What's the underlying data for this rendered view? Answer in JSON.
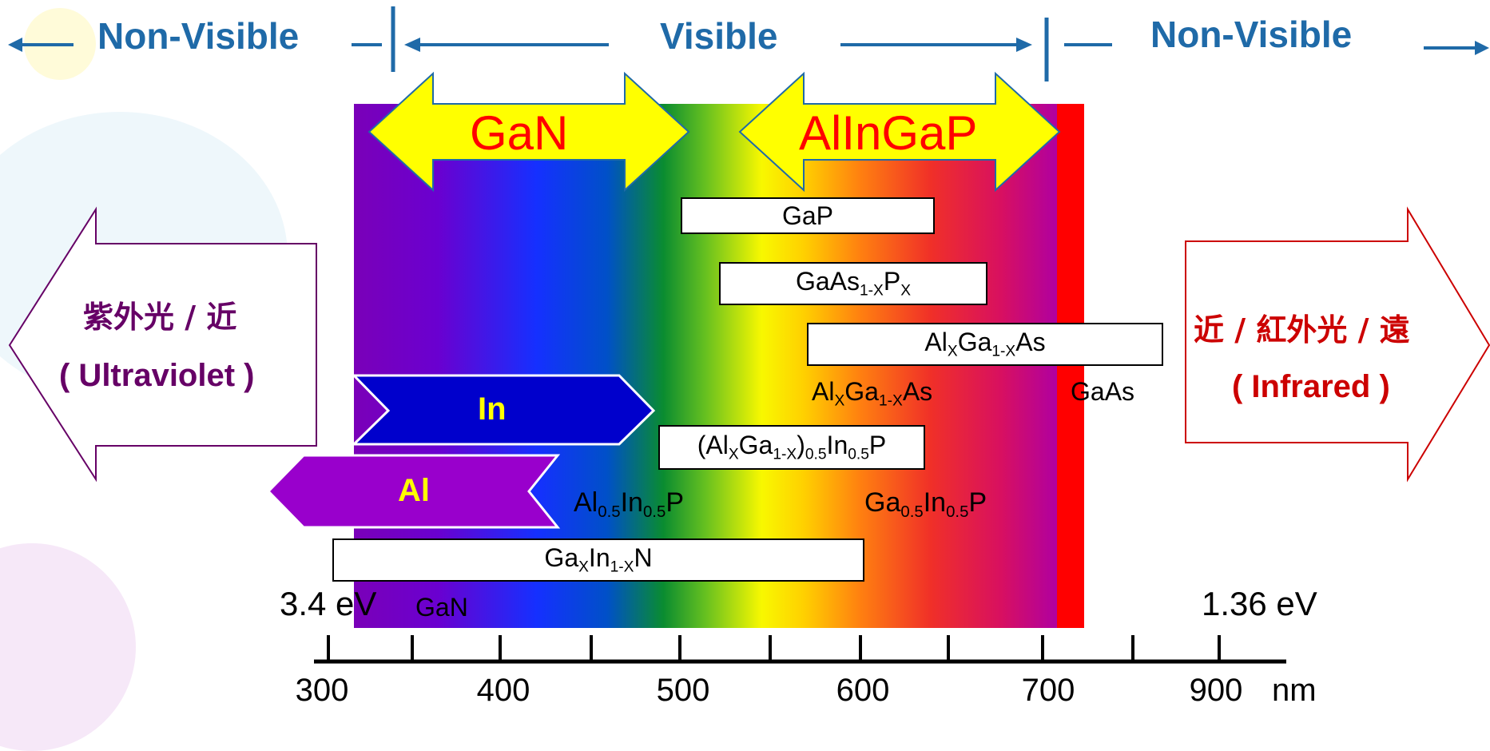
{
  "header": {
    "left": "Non-Visible",
    "center": "Visible",
    "right": "Non-Visible"
  },
  "big_arrows": {
    "gan": "GaN",
    "alingap": "AlInGaP"
  },
  "side_left": {
    "line1": "紫外光 / 近",
    "line2": "( Ultraviolet )"
  },
  "side_right": {
    "line1": "近 / 紅外光 / 遠",
    "line2": "( Infrared )"
  },
  "element_arrows": {
    "in": "In",
    "al": "Al"
  },
  "materials": {
    "gap": "GaP",
    "gaasp": {
      "a": "GaAs",
      "b": "1-X",
      "c": "P",
      "d": "X"
    },
    "algaas_box": {
      "a": "Al",
      "b": "X",
      "c": "Ga",
      "d": "1-X",
      "e": "As"
    },
    "algaas_label": {
      "a": "Al",
      "b": "X",
      "c": "Ga",
      "d": "1-X",
      "e": "As"
    },
    "gaas": "GaAs",
    "alingap_quat": {
      "a": "(Al",
      "b": "X",
      "c": "Ga",
      "d": "1-X",
      "e": ")",
      "f": "0.5",
      "g": "In",
      "h": "0.5",
      "i": "P"
    },
    "alinp": {
      "a": "Al",
      "b": "0.5",
      "c": "In",
      "d": "0.5",
      "e": "P"
    },
    "gainp": {
      "a": "Ga",
      "b": "0.5",
      "c": "In",
      "d": "0.5",
      "e": "P"
    },
    "gainn": {
      "a": "Ga",
      "b": "X",
      "c": "In",
      "d": "1-X",
      "e": "N"
    },
    "gan_small": "GaN"
  },
  "energy": {
    "left": "3.4 eV",
    "right": "1.36 eV"
  },
  "axis": {
    "labels": [
      "300",
      "400",
      "500",
      "600",
      "700",
      "900"
    ],
    "unit": "nm"
  },
  "colors": {
    "header_blue": "#1f6aa8",
    "arrow_yellow": "#ffff00",
    "arrow_text_red": "#ff0000",
    "in_arrow": "#0000cc",
    "al_arrow": "#9900cc",
    "label_yellow": "#ffff00",
    "uv_purple": "#660066",
    "ir_red": "#cc0000"
  }
}
